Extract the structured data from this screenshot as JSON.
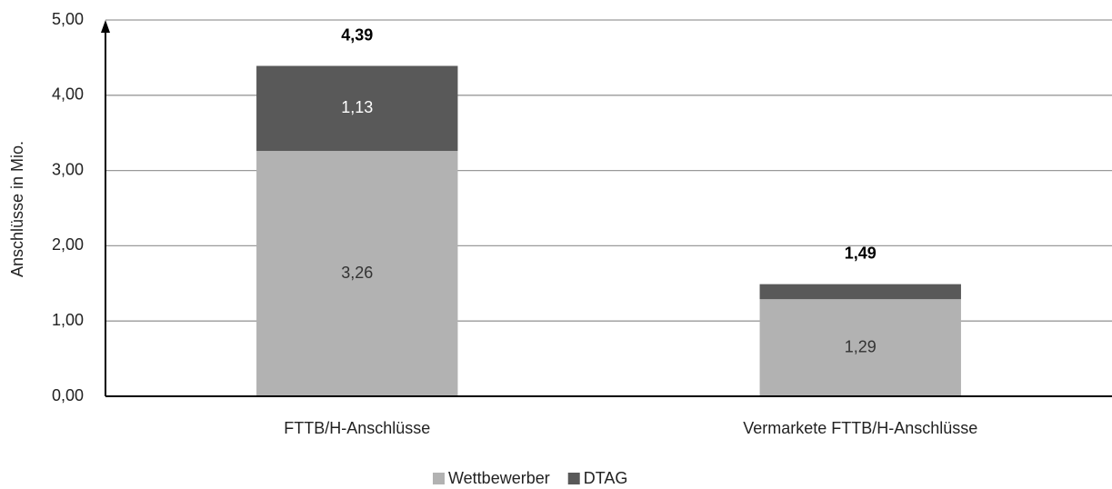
{
  "chart_data": {
    "type": "stacked_bar",
    "y_label": "Anschlüsse in Mio.",
    "categories": [
      "FTTB/H-Anschlüsse",
      "Vermarkete FTTB/H-Anschlüsse"
    ],
    "series": [
      {
        "name": "Wettbewerber",
        "color": "#b2b2b2",
        "values": [
          3.26,
          1.29
        ],
        "value_labels": [
          "3,26",
          "1,29"
        ]
      },
      {
        "name": "DTAG",
        "color": "#595959",
        "values": [
          1.13,
          0.2
        ],
        "value_labels": [
          "1,13",
          null
        ]
      }
    ],
    "totals": [
      4.39,
      1.49
    ],
    "total_labels": [
      "4,39",
      "1,49"
    ],
    "ylim": [
      0,
      5
    ],
    "yticks": [
      {
        "value": 0,
        "label": "0,00"
      },
      {
        "value": 1,
        "label": "1,00"
      },
      {
        "value": 2,
        "label": "2,00"
      },
      {
        "value": 3,
        "label": "3,00"
      },
      {
        "value": 4,
        "label": "4,00"
      },
      {
        "value": 5,
        "label": "5,00"
      }
    ],
    "grid": true,
    "legend": "bottom"
  }
}
